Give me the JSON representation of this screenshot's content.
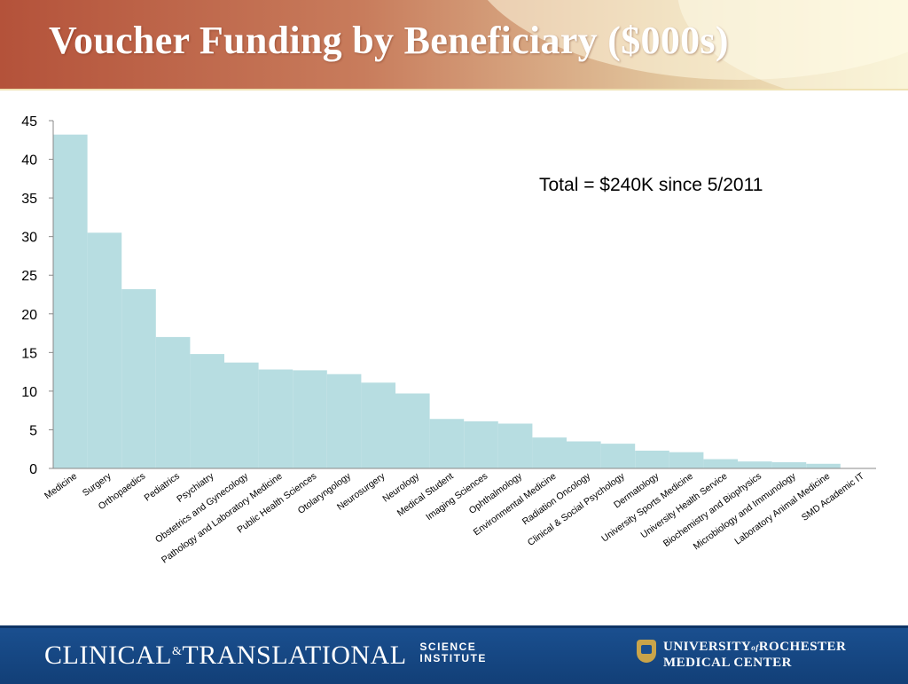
{
  "slide": {
    "title": "Voucher Funding by Beneficiary ($000s)",
    "annotation": "Total = $240K since 5/2011"
  },
  "footer": {
    "ctsi_main": "CLINICAL",
    "ctsi_amp": "&",
    "ctsi_main2": "TRANSLATIONAL",
    "ctsi_sub1": "SCIENCE",
    "ctsi_sub2": "INSTITUTE",
    "urmc_line1a": "UNIVERSITY",
    "urmc_of": "of",
    "urmc_line1b": "ROCHESTER",
    "urmc_line2": "MEDICAL CENTER",
    "urmc_icon": "university-seal-icon"
  },
  "chart_data": {
    "type": "bar",
    "categories": [
      "Medicine",
      "Surgery",
      "Orthopaedics",
      "Pediatrics",
      "Psychiatry",
      "Obstetrics and Gynecology",
      "Pathology and Laboratory Medicine",
      "Public Health Sciences",
      "Otolaryngology",
      "Neurosurgery",
      "Neurology",
      "Medical Student",
      "Imaging Sciences",
      "Ophthalmology",
      "Environmental Medicine",
      "Radiation Oncology",
      "Clinical & Social Psychology",
      "Dermatology",
      "University Sports Medicine",
      "University Health Service",
      "Biochemistry and Biophysics",
      "Microbiology and Immunology",
      "Laboratory Animal Medicine",
      "SMD Academic IT"
    ],
    "values": [
      43.2,
      30.5,
      23.2,
      17.0,
      14.8,
      13.7,
      12.8,
      12.7,
      12.2,
      11.1,
      9.7,
      6.4,
      6.1,
      5.8,
      4.0,
      3.5,
      3.2,
      2.3,
      2.1,
      1.2,
      0.9,
      0.8,
      0.6,
      0
    ],
    "ylim": [
      0,
      45
    ],
    "yticks": [
      0,
      5,
      10,
      15,
      20,
      25,
      30,
      35,
      40,
      45
    ],
    "bar_color": "#b7dde1",
    "grid": false,
    "legend": "none"
  }
}
